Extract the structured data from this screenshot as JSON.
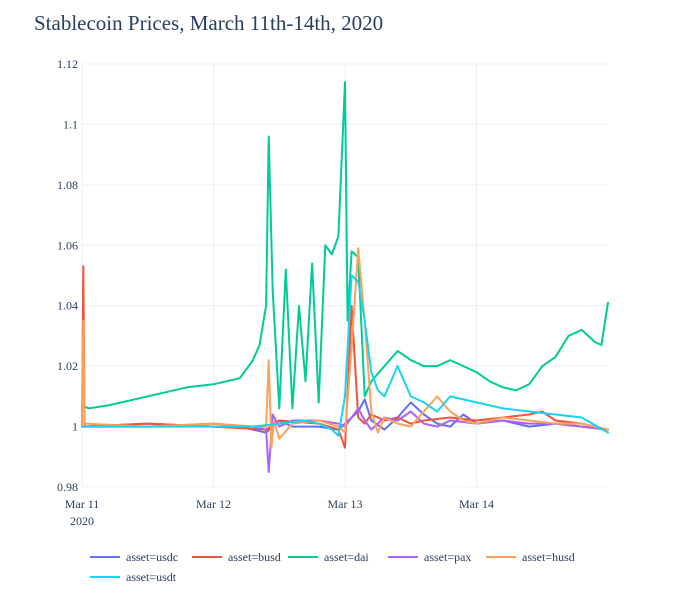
{
  "chart_data": {
    "type": "line",
    "title": "Stablecoin Prices, March 11th-14th, 2020",
    "xlabel": "",
    "ylabel": "",
    "x_range": [
      0,
      4
    ],
    "ylim": [
      0.98,
      1.12
    ],
    "y_ticks": [
      0.98,
      1.0,
      1.02,
      1.04,
      1.06,
      1.08,
      1.1,
      1.12
    ],
    "y_tick_labels": [
      "0.98",
      "1",
      "1.02",
      "1.04",
      "1.06",
      "1.08",
      "1.1",
      "1.12"
    ],
    "x_ticks": [
      0,
      1,
      2,
      3
    ],
    "x_tick_labels": [
      "Mar 11",
      "Mar 12",
      "Mar 13",
      "Mar 14"
    ],
    "x_tick_sublabel": "2020",
    "grid": true,
    "legend_position": "bottom",
    "series": [
      {
        "name": "asset=usdc",
        "color": "#636efa",
        "x": [
          0,
          0.5,
          1.0,
          1.2,
          1.4,
          1.5,
          1.6,
          1.8,
          1.95,
          2.0,
          2.1,
          2.15,
          2.2,
          2.3,
          2.4,
          2.5,
          2.6,
          2.7,
          2.8,
          2.9,
          3.0,
          3.2,
          3.4,
          3.6,
          3.8,
          4.0
        ],
        "y": [
          1.0,
          1.001,
          1.0,
          1.0,
          0.998,
          1.002,
          1.0,
          1.0,
          0.999,
          1.001,
          1.005,
          1.009,
          1.002,
          0.999,
          1.003,
          1.008,
          1.004,
          1.001,
          1.0,
          1.004,
          1.001,
          1.002,
          1.0,
          1.001,
          1.0,
          0.999
        ]
      },
      {
        "name": "asset=busd",
        "color": "#ef553b",
        "x": [
          0,
          0.01,
          0.02,
          0.5,
          1.0,
          1.4,
          1.5,
          1.8,
          1.95,
          2.0,
          2.05,
          2.1,
          2.15,
          2.2,
          2.3,
          2.4,
          2.5,
          2.6,
          2.8,
          3.0,
          3.2,
          3.4,
          3.5,
          3.6,
          3.8,
          4.0
        ],
        "y": [
          1.0,
          1.053,
          1.0,
          1.001,
          1.0,
          0.999,
          1.002,
          1.001,
          0.999,
          0.993,
          1.04,
          1.003,
          1.001,
          1.004,
          1.002,
          1.003,
          1.001,
          1.002,
          1.003,
          1.002,
          1.003,
          1.004,
          1.005,
          1.002,
          1.001,
          0.999
        ]
      },
      {
        "name": "asset=dai",
        "color": "#00cc96",
        "x": [
          0,
          0.05,
          0.2,
          0.4,
          0.6,
          0.8,
          1.0,
          1.2,
          1.3,
          1.35,
          1.4,
          1.42,
          1.45,
          1.5,
          1.55,
          1.6,
          1.65,
          1.7,
          1.75,
          1.8,
          1.85,
          1.9,
          1.95,
          2.0,
          2.02,
          2.05,
          2.1,
          2.15,
          2.2,
          2.3,
          2.4,
          2.5,
          2.6,
          2.7,
          2.8,
          3.0,
          3.1,
          3.2,
          3.3,
          3.4,
          3.5,
          3.6,
          3.7,
          3.8,
          3.9,
          3.95,
          4.0
        ],
        "y": [
          1.007,
          1.006,
          1.007,
          1.009,
          1.011,
          1.013,
          1.014,
          1.016,
          1.022,
          1.027,
          1.04,
          1.096,
          1.045,
          1.006,
          1.052,
          1.006,
          1.04,
          1.015,
          1.054,
          1.008,
          1.06,
          1.057,
          1.063,
          1.114,
          1.035,
          1.058,
          1.056,
          1.01,
          1.015,
          1.02,
          1.025,
          1.022,
          1.02,
          1.02,
          1.022,
          1.018,
          1.015,
          1.013,
          1.012,
          1.014,
          1.02,
          1.023,
          1.03,
          1.032,
          1.028,
          1.027,
          1.041
        ]
      },
      {
        "name": "asset=pax",
        "color": "#ab63fa",
        "x": [
          0,
          0.5,
          1.0,
          1.3,
          1.4,
          1.42,
          1.45,
          1.5,
          1.6,
          1.8,
          1.95,
          2.0,
          2.1,
          2.15,
          2.2,
          2.3,
          2.4,
          2.5,
          2.6,
          2.7,
          2.8,
          3.0,
          3.2,
          3.4,
          3.6,
          3.8,
          4.0
        ],
        "y": [
          1.0,
          1.0,
          1.001,
          1.0,
          0.999,
          0.985,
          1.004,
          1.0,
          1.002,
          1.002,
          1.001,
          1.0,
          1.006,
          1.002,
          0.999,
          1.003,
          1.002,
          1.005,
          1.001,
          1.0,
          1.002,
          1.001,
          1.002,
          1.001,
          1.001,
          1.0,
          0.999
        ]
      },
      {
        "name": "asset=husd",
        "color": "#ffa15a",
        "x": [
          0,
          0.01,
          0.02,
          0.5,
          1.0,
          1.3,
          1.4,
          1.42,
          1.44,
          1.46,
          1.5,
          1.6,
          1.8,
          1.95,
          2.0,
          2.05,
          2.1,
          2.15,
          2.2,
          2.25,
          2.3,
          2.4,
          2.5,
          2.6,
          2.7,
          2.8,
          2.9,
          3.0,
          3.2,
          3.4,
          3.6,
          3.8,
          4.0
        ],
        "y": [
          1.0,
          1.035,
          1.001,
          1.0,
          1.001,
          1.0,
          1.0,
          1.022,
          0.993,
          1.002,
          0.996,
          1.001,
          1.002,
          1.0,
          0.998,
          1.026,
          1.059,
          1.035,
          1.005,
          0.998,
          1.003,
          1.001,
          1.0,
          1.005,
          1.01,
          1.005,
          1.002,
          1.001,
          1.003,
          1.002,
          1.001,
          1.001,
          0.999
        ]
      },
      {
        "name": "asset=usdt",
        "color": "#19d3f3",
        "x": [
          0,
          0.5,
          1.0,
          1.3,
          1.5,
          1.7,
          1.8,
          1.9,
          1.95,
          2.0,
          2.05,
          2.1,
          2.15,
          2.2,
          2.25,
          2.3,
          2.35,
          2.4,
          2.5,
          2.6,
          2.7,
          2.8,
          2.9,
          3.0,
          3.1,
          3.2,
          3.4,
          3.6,
          3.8,
          4.0
        ],
        "y": [
          1.0,
          1.0,
          1.0,
          1.0,
          1.001,
          1.002,
          1.001,
          0.999,
          0.997,
          1.01,
          1.05,
          1.048,
          1.035,
          1.018,
          1.012,
          1.01,
          1.015,
          1.02,
          1.01,
          1.008,
          1.005,
          1.01,
          1.009,
          1.008,
          1.007,
          1.006,
          1.005,
          1.004,
          1.003,
          0.998
        ]
      }
    ]
  }
}
